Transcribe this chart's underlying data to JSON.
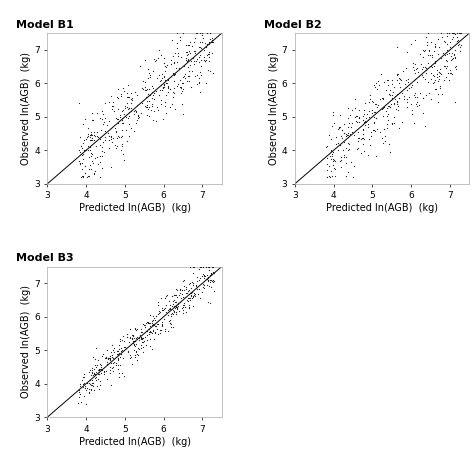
{
  "title_b1": "Model B1",
  "title_b2": "Model B2",
  "title_b3": "Model B3",
  "xlabel": "Predicted ln(AGB)  (kg)",
  "ylabel": "Observed ln(AGB)  (kg)",
  "xlim": [
    3,
    7.5
  ],
  "ylim": [
    3,
    7.5
  ],
  "xticks": [
    3,
    4,
    5,
    6,
    7
  ],
  "yticks": [
    3,
    4,
    5,
    6,
    7
  ],
  "n_points_b1": 450,
  "n_points_b2": 430,
  "n_points_b3": 480,
  "seed_b1": 42,
  "seed_b2": 7,
  "seed_b3": 99,
  "spread_b1": 0.52,
  "spread_b2": 0.55,
  "spread_b3": 0.28,
  "dot_color": "#1a1a1a",
  "dot_size": 3,
  "line_color": "#000000",
  "background_color": "#ffffff",
  "title_fontsize": 8,
  "label_fontsize": 7,
  "tick_fontsize": 6.5,
  "title_fontweight": "bold"
}
